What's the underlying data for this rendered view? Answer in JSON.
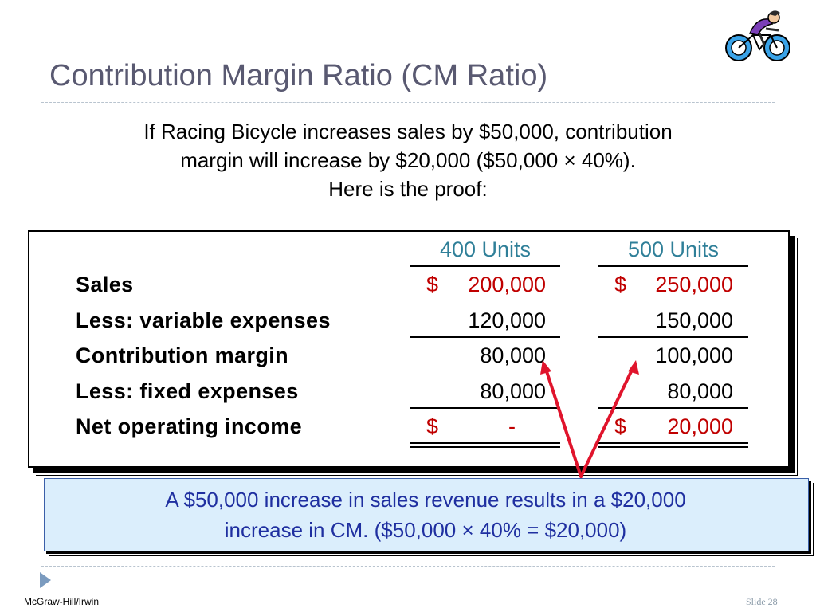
{
  "slide": {
    "title": "Contribution Margin Ratio (CM Ratio)",
    "intro_line1": "If Racing Bicycle increases sales by $50,000, contribution",
    "intro_line2": "margin will increase by $20,000 ($50,000 × 40%).",
    "intro_line3": "Here is the proof:",
    "footer_left": "McGraw-Hill/Irwin",
    "footer_right": "Slide 28",
    "icons": [
      "bicycle-clipart-icon",
      "next-slide-triangle-icon"
    ]
  },
  "table": {
    "columns": [
      "400 Units",
      "500 Units"
    ],
    "rows": [
      {
        "label": "Sales",
        "c1_symbol": "$",
        "c1": "200,000",
        "c2_symbol": "$",
        "c2": "250,000"
      },
      {
        "label": "Less: variable expenses",
        "c1": "120,000",
        "c2": "150,000"
      },
      {
        "label": "Contribution margin",
        "c1": "80,000",
        "c2": "100,000"
      },
      {
        "label": "Less: fixed expenses",
        "c1": "80,000",
        "c2": "80,000"
      },
      {
        "label": "Net operating income",
        "c1_symbol": "$",
        "c1": "-",
        "c2_symbol": "$",
        "c2": "20,000"
      }
    ]
  },
  "callout": {
    "line1": "A $50,000 increase in sales revenue results in a $20,000",
    "line2": "increase in CM. ($50,000 × 40% = $20,000)"
  },
  "colors": {
    "title": "#595971",
    "header": "#2f7f98",
    "highlight_red": "#c00000",
    "callout_bg": "#dbeefc",
    "callout_text": "#1f2fa0",
    "arrow": "#e0142c"
  }
}
